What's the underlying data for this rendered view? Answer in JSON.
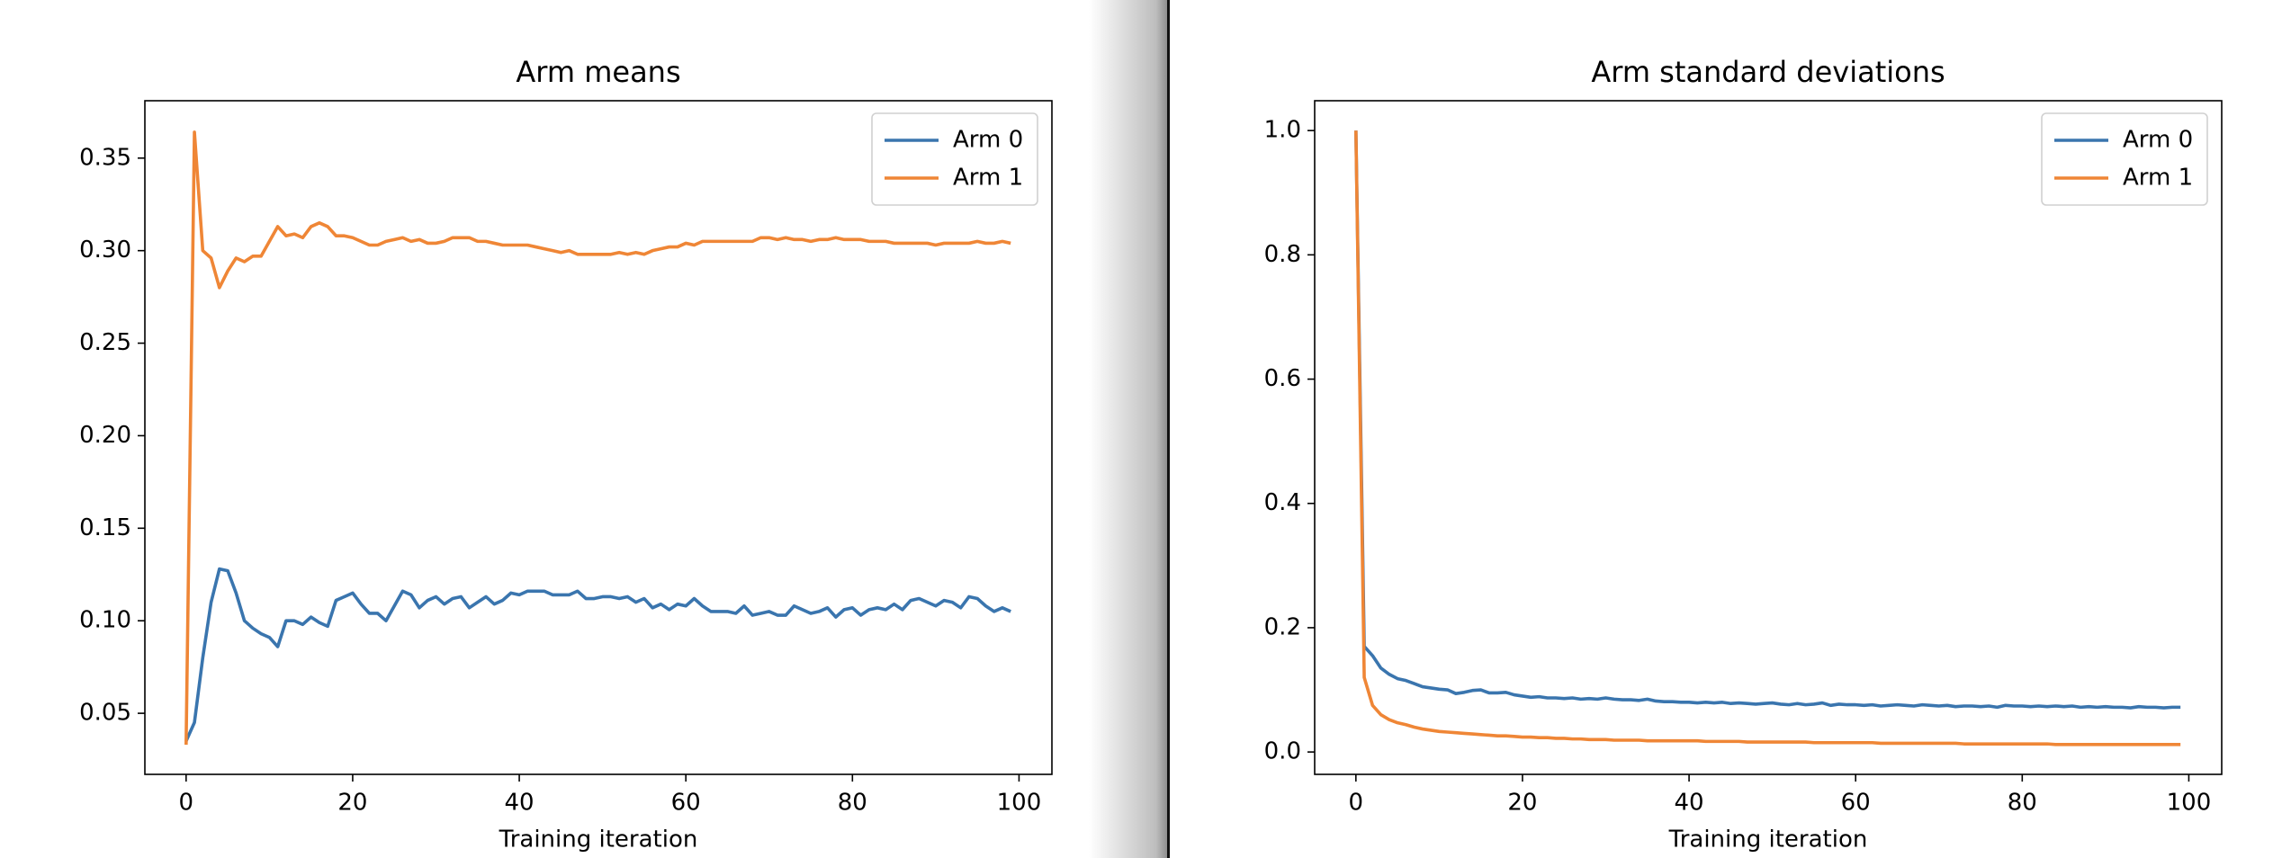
{
  "chart_data": [
    {
      "type": "line",
      "title": "Arm means",
      "xlabel": "Training iteration",
      "legend": "upper right",
      "x": [
        0,
        1,
        2,
        3,
        4,
        5,
        6,
        7,
        8,
        9,
        10,
        11,
        12,
        13,
        14,
        15,
        16,
        17,
        18,
        19,
        20,
        21,
        22,
        23,
        24,
        25,
        26,
        27,
        28,
        29,
        30,
        31,
        32,
        33,
        34,
        35,
        36,
        37,
        38,
        39,
        40,
        41,
        42,
        43,
        44,
        45,
        46,
        47,
        48,
        49,
        50,
        51,
        52,
        53,
        54,
        55,
        56,
        57,
        58,
        59,
        60,
        61,
        62,
        63,
        64,
        65,
        66,
        67,
        68,
        69,
        70,
        71,
        72,
        73,
        74,
        75,
        76,
        77,
        78,
        79,
        80,
        81,
        82,
        83,
        84,
        85,
        86,
        87,
        88,
        89,
        90,
        91,
        92,
        93,
        94,
        95,
        96,
        97,
        98,
        99
      ],
      "xlim": [
        -4.95,
        103.95
      ],
      "xticks": [
        0,
        20,
        40,
        60,
        80,
        100
      ],
      "ylim": [
        0.017,
        0.381
      ],
      "yticks": [
        {
          "value": 0.05,
          "label": "0.05"
        },
        {
          "value": 0.1,
          "label": "0.10"
        },
        {
          "value": 0.15,
          "label": "0.15"
        },
        {
          "value": 0.2,
          "label": "0.20"
        },
        {
          "value": 0.25,
          "label": "0.25"
        },
        {
          "value": 0.3,
          "label": "0.30"
        },
        {
          "value": 0.35,
          "label": "0.35"
        }
      ],
      "series": [
        {
          "name": "Arm 0",
          "color": "#3a75ae",
          "values": [
            0.035,
            0.045,
            0.08,
            0.11,
            0.128,
            0.127,
            0.115,
            0.1,
            0.096,
            0.093,
            0.091,
            0.086,
            0.1,
            0.1,
            0.098,
            0.102,
            0.099,
            0.097,
            0.111,
            0.113,
            0.115,
            0.109,
            0.104,
            0.104,
            0.1,
            0.108,
            0.116,
            0.114,
            0.107,
            0.111,
            0.113,
            0.109,
            0.112,
            0.113,
            0.107,
            0.11,
            0.113,
            0.109,
            0.111,
            0.115,
            0.114,
            0.116,
            0.116,
            0.116,
            0.114,
            0.114,
            0.114,
            0.116,
            0.112,
            0.112,
            0.113,
            0.113,
            0.112,
            0.113,
            0.11,
            0.112,
            0.107,
            0.109,
            0.106,
            0.109,
            0.108,
            0.112,
            0.108,
            0.105,
            0.105,
            0.105,
            0.104,
            0.108,
            0.103,
            0.104,
            0.105,
            0.103,
            0.103,
            0.108,
            0.106,
            0.104,
            0.105,
            0.107,
            0.102,
            0.106,
            0.107,
            0.103,
            0.106,
            0.107,
            0.106,
            0.109,
            0.106,
            0.111,
            0.112,
            0.11,
            0.108,
            0.111,
            0.11,
            0.107,
            0.113,
            0.112,
            0.108,
            0.105,
            0.107,
            0.105
          ]
        },
        {
          "name": "Arm 1",
          "color": "#ef8636",
          "values": [
            0.033,
            0.364,
            0.3,
            0.296,
            0.28,
            0.289,
            0.296,
            0.294,
            0.297,
            0.297,
            0.305,
            0.313,
            0.308,
            0.309,
            0.307,
            0.313,
            0.315,
            0.313,
            0.308,
            0.308,
            0.307,
            0.305,
            0.303,
            0.303,
            0.305,
            0.306,
            0.307,
            0.305,
            0.306,
            0.304,
            0.304,
            0.305,
            0.307,
            0.307,
            0.307,
            0.305,
            0.305,
            0.304,
            0.303,
            0.303,
            0.303,
            0.303,
            0.302,
            0.301,
            0.3,
            0.299,
            0.3,
            0.298,
            0.298,
            0.298,
            0.298,
            0.298,
            0.299,
            0.298,
            0.299,
            0.298,
            0.3,
            0.301,
            0.302,
            0.302,
            0.304,
            0.303,
            0.305,
            0.305,
            0.305,
            0.305,
            0.305,
            0.305,
            0.305,
            0.307,
            0.307,
            0.306,
            0.307,
            0.306,
            0.306,
            0.305,
            0.306,
            0.306,
            0.307,
            0.306,
            0.306,
            0.306,
            0.305,
            0.305,
            0.305,
            0.304,
            0.304,
            0.304,
            0.304,
            0.304,
            0.303,
            0.304,
            0.304,
            0.304,
            0.304,
            0.305,
            0.304,
            0.304,
            0.305,
            0.304
          ]
        }
      ]
    },
    {
      "type": "line",
      "title": "Arm standard deviations",
      "xlabel": "Training iteration",
      "legend": "upper right",
      "x": [
        0,
        1,
        2,
        3,
        4,
        5,
        6,
        7,
        8,
        9,
        10,
        11,
        12,
        13,
        14,
        15,
        16,
        17,
        18,
        19,
        20,
        21,
        22,
        23,
        24,
        25,
        26,
        27,
        28,
        29,
        30,
        31,
        32,
        33,
        34,
        35,
        36,
        37,
        38,
        39,
        40,
        41,
        42,
        43,
        44,
        45,
        46,
        47,
        48,
        49,
        50,
        51,
        52,
        53,
        54,
        55,
        56,
        57,
        58,
        59,
        60,
        61,
        62,
        63,
        64,
        65,
        66,
        67,
        68,
        69,
        70,
        71,
        72,
        73,
        74,
        75,
        76,
        77,
        78,
        79,
        80,
        81,
        82,
        83,
        84,
        85,
        86,
        87,
        88,
        89,
        90,
        91,
        92,
        93,
        94,
        95,
        96,
        97,
        98,
        99
      ],
      "xlim": [
        -4.95,
        103.95
      ],
      "xticks": [
        0,
        20,
        40,
        60,
        80,
        100
      ],
      "ylim": [
        -0.036,
        1.048
      ],
      "yticks": [
        {
          "value": 0,
          "label": "0.0"
        },
        0.2,
        0.4,
        0.6,
        0.8,
        {
          "value": 1,
          "label": "1.0"
        }
      ],
      "series": [
        {
          "name": "Arm 0",
          "color": "#3a75ae",
          "values": [
            1.0,
            0.17,
            0.155,
            0.135,
            0.125,
            0.118,
            0.115,
            0.11,
            0.105,
            0.103,
            0.101,
            0.1,
            0.094,
            0.096,
            0.099,
            0.1,
            0.095,
            0.095,
            0.096,
            0.092,
            0.09,
            0.088,
            0.089,
            0.087,
            0.087,
            0.086,
            0.087,
            0.085,
            0.086,
            0.085,
            0.087,
            0.085,
            0.084,
            0.084,
            0.083,
            0.085,
            0.082,
            0.081,
            0.081,
            0.08,
            0.08,
            0.079,
            0.08,
            0.079,
            0.08,
            0.078,
            0.079,
            0.078,
            0.077,
            0.078,
            0.079,
            0.077,
            0.076,
            0.078,
            0.076,
            0.077,
            0.079,
            0.075,
            0.077,
            0.076,
            0.076,
            0.075,
            0.076,
            0.074,
            0.075,
            0.076,
            0.075,
            0.074,
            0.076,
            0.075,
            0.074,
            0.075,
            0.073,
            0.074,
            0.074,
            0.073,
            0.074,
            0.072,
            0.075,
            0.074,
            0.074,
            0.073,
            0.074,
            0.073,
            0.074,
            0.073,
            0.074,
            0.072,
            0.073,
            0.072,
            0.073,
            0.072,
            0.072,
            0.071,
            0.073,
            0.072,
            0.072,
            0.071,
            0.072,
            0.072
          ]
        },
        {
          "name": "Arm 1",
          "color": "#ef8636",
          "values": [
            1.0,
            0.12,
            0.075,
            0.06,
            0.052,
            0.047,
            0.044,
            0.04,
            0.037,
            0.035,
            0.033,
            0.032,
            0.031,
            0.03,
            0.029,
            0.028,
            0.027,
            0.026,
            0.026,
            0.025,
            0.024,
            0.024,
            0.023,
            0.023,
            0.022,
            0.022,
            0.021,
            0.021,
            0.02,
            0.02,
            0.02,
            0.019,
            0.019,
            0.019,
            0.019,
            0.018,
            0.018,
            0.018,
            0.018,
            0.018,
            0.018,
            0.018,
            0.017,
            0.017,
            0.017,
            0.017,
            0.017,
            0.016,
            0.016,
            0.016,
            0.016,
            0.016,
            0.016,
            0.016,
            0.016,
            0.015,
            0.015,
            0.015,
            0.015,
            0.015,
            0.015,
            0.015,
            0.015,
            0.014,
            0.014,
            0.014,
            0.014,
            0.014,
            0.014,
            0.014,
            0.014,
            0.014,
            0.014,
            0.013,
            0.013,
            0.013,
            0.013,
            0.013,
            0.013,
            0.013,
            0.013,
            0.013,
            0.013,
            0.013,
            0.012,
            0.012,
            0.012,
            0.012,
            0.012,
            0.012,
            0.012,
            0.012,
            0.012,
            0.012,
            0.012,
            0.012,
            0.012,
            0.012,
            0.012,
            0.012
          ]
        }
      ]
    }
  ]
}
